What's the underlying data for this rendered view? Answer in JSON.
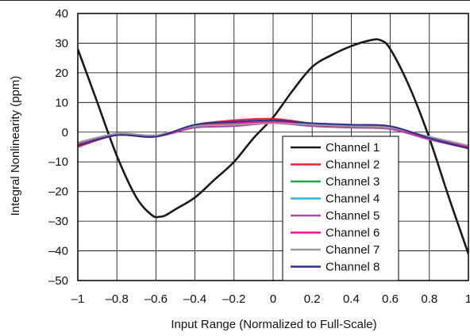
{
  "chart_data": {
    "type": "line",
    "title": "",
    "xlabel": "Input Range (Normalized to Full-Scale)",
    "ylabel": "Integral Nonlinearity (ppm)",
    "xlim": [
      -1,
      1
    ],
    "ylim": [
      -50,
      40
    ],
    "xticks": [
      -1,
      -0.8,
      -0.6,
      -0.4,
      -0.2,
      0,
      0.2,
      0.4,
      0.6,
      0.8,
      1
    ],
    "xtick_labels": [
      "–1",
      "–0.8",
      "–0.6",
      "–0.4",
      "–0.2",
      "0",
      "0.2",
      "0.4",
      "0.6",
      "0.8",
      "1"
    ],
    "yticks": [
      -50,
      -40,
      -30,
      -20,
      -10,
      0,
      10,
      20,
      30,
      40
    ],
    "ytick_labels": [
      "–50",
      "–40",
      "–30",
      "–20",
      "–10",
      "0",
      "10",
      "20",
      "30",
      "40"
    ],
    "grid": true,
    "legend_position": "bottom-right",
    "series": [
      {
        "name": "Channel 1",
        "color": "#1a1a1a",
        "x": [
          -1,
          -0.9,
          -0.8,
          -0.7,
          -0.62,
          -0.58,
          -0.55,
          -0.5,
          -0.4,
          -0.3,
          -0.2,
          -0.1,
          0,
          0.1,
          0.2,
          0.3,
          0.4,
          0.5,
          0.55,
          0.6,
          0.7,
          0.8,
          0.9,
          1
        ],
        "y": [
          28,
          10,
          -8,
          -22,
          -28,
          -28.5,
          -28,
          -26,
          -22,
          -16,
          -10,
          -2,
          5,
          14,
          22,
          26,
          29,
          31,
          31,
          28,
          15,
          -2,
          -22,
          -41
        ]
      },
      {
        "name": "Channel 2",
        "color": "#e8242c",
        "x": [
          -1,
          -0.8,
          -0.6,
          -0.4,
          -0.2,
          0,
          0.2,
          0.4,
          0.6,
          0.8,
          1
        ],
        "y": [
          -5,
          -1,
          -1.5,
          2.5,
          4,
          4.5,
          3,
          2.5,
          2,
          -2,
          -5
        ]
      },
      {
        "name": "Channel 3",
        "color": "#1aa64a",
        "x": [
          -1,
          -0.8,
          -0.6,
          -0.4,
          -0.2,
          0,
          0.2,
          0.4,
          0.6,
          0.8,
          1
        ],
        "y": [
          -4.5,
          -1,
          -1.5,
          2,
          3,
          3.5,
          2.5,
          2,
          1.5,
          -2,
          -5
        ]
      },
      {
        "name": "Channel 4",
        "color": "#28b6e6",
        "x": [
          -1,
          -0.8,
          -0.6,
          -0.4,
          -0.2,
          0,
          0.2,
          0.4,
          0.6,
          0.8,
          1
        ],
        "y": [
          -4,
          -1,
          -1.5,
          2.5,
          3,
          3.5,
          3,
          2.5,
          1.5,
          -2,
          -5
        ]
      },
      {
        "name": "Channel 5",
        "color": "#a84aa4",
        "x": [
          -1,
          -0.8,
          -0.6,
          -0.4,
          -0.2,
          0,
          0.2,
          0.4,
          0.6,
          0.8,
          1
        ],
        "y": [
          -4,
          -1,
          -1.5,
          1.5,
          2,
          3,
          2,
          1.5,
          1,
          -2.5,
          -5.5
        ]
      },
      {
        "name": "Channel 6",
        "color": "#e61b8c",
        "x": [
          -1,
          -0.8,
          -0.6,
          -0.4,
          -0.2,
          0,
          0.2,
          0.4,
          0.6,
          0.8,
          1
        ],
        "y": [
          -4.5,
          -1,
          -1.5,
          2,
          3,
          3.5,
          2.5,
          2,
          1.5,
          -2,
          -5
        ]
      },
      {
        "name": "Channel 7",
        "color": "#9a9a9a",
        "x": [
          -1,
          -0.8,
          -0.6,
          -0.4,
          -0.2,
          0,
          0.2,
          0.4,
          0.6,
          0.8,
          1
        ],
        "y": [
          -3.5,
          -0.5,
          -1,
          2,
          2.5,
          3,
          2.5,
          2,
          1.5,
          -1.5,
          -4.5
        ]
      },
      {
        "name": "Channel 8",
        "color": "#2e3192",
        "x": [
          -1,
          -0.8,
          -0.6,
          -0.4,
          -0.2,
          0,
          0.2,
          0.4,
          0.6,
          0.8,
          1
        ],
        "y": [
          -4.5,
          -1,
          -1.5,
          2.5,
          3.5,
          4,
          3,
          2.5,
          2,
          -2,
          -5.5
        ]
      }
    ]
  }
}
